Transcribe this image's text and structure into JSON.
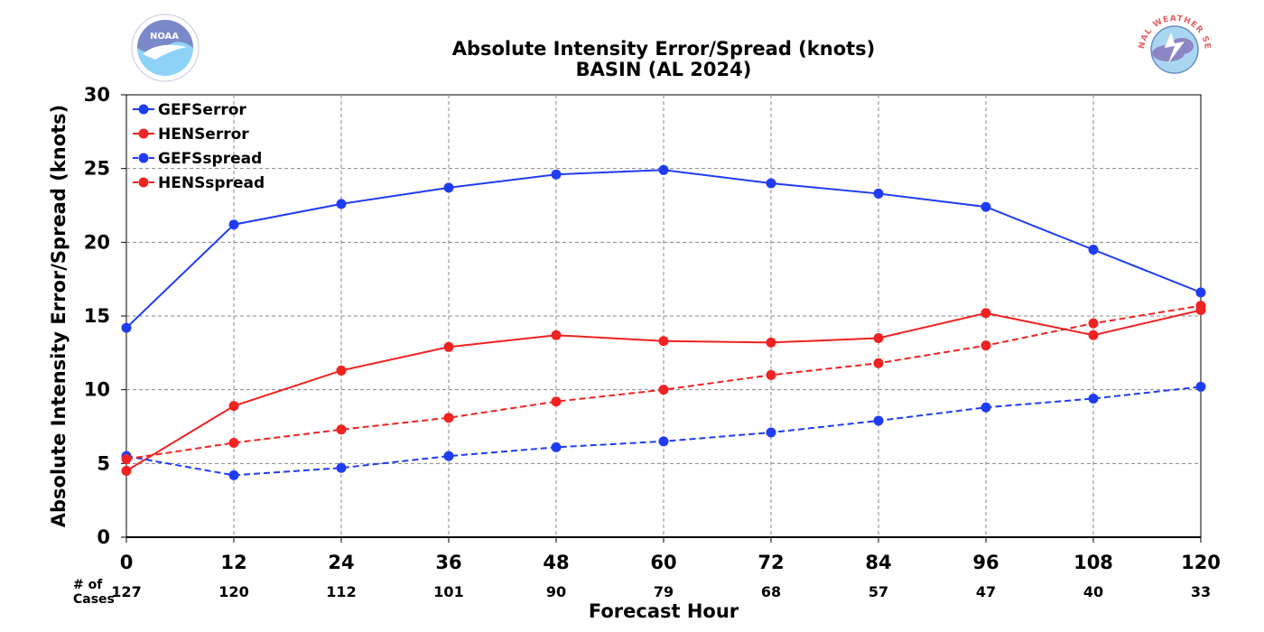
{
  "chart_data": {
    "type": "line",
    "title": "Absolute Intensity Error/Spread (knots)",
    "subtitle": "BASIN (AL 2024)",
    "xlabel": "Forecast Hour",
    "ylabel": "Absolute Intensity Error/Spread (knots)",
    "x": [
      0,
      12,
      24,
      36,
      48,
      60,
      72,
      84,
      96,
      108,
      120
    ],
    "xlim": [
      0,
      120
    ],
    "ylim": [
      0,
      30
    ],
    "yticks": [
      0,
      5,
      10,
      15,
      20,
      25,
      30
    ],
    "grid": true,
    "legend_position": "top-left",
    "cases_label_line1": "# of",
    "cases_label_line2": "Cases",
    "cases": [
      127,
      120,
      112,
      101,
      90,
      79,
      68,
      57,
      47,
      40,
      33
    ],
    "series": [
      {
        "name": "GEFSerror",
        "color": "#1f3cf5",
        "dashed": false,
        "values": [
          14.2,
          21.2,
          22.6,
          23.7,
          24.6,
          24.9,
          24.0,
          23.3,
          22.4,
          19.5,
          16.6
        ]
      },
      {
        "name": "HENSerror",
        "color": "#f02222",
        "dashed": false,
        "values": [
          4.5,
          8.9,
          11.3,
          12.9,
          13.7,
          13.3,
          13.2,
          13.5,
          15.2,
          13.7,
          15.4
        ]
      },
      {
        "name": "GEFSspread",
        "color": "#1f3cf5",
        "dashed": true,
        "values": [
          5.5,
          4.2,
          4.7,
          5.5,
          6.1,
          6.5,
          7.1,
          7.9,
          8.8,
          9.4,
          10.2
        ]
      },
      {
        "name": "HENSspread",
        "color": "#f02222",
        "dashed": true,
        "values": [
          5.3,
          6.4,
          7.3,
          8.1,
          9.2,
          10.0,
          11.0,
          11.8,
          13.0,
          14.5,
          15.7
        ]
      }
    ]
  },
  "logos": {
    "left": {
      "text": "NOAA",
      "color": "#7b88c9"
    },
    "right": {
      "text": "NATIONAL WEATHER SERVICE",
      "color": "#e86060"
    }
  }
}
